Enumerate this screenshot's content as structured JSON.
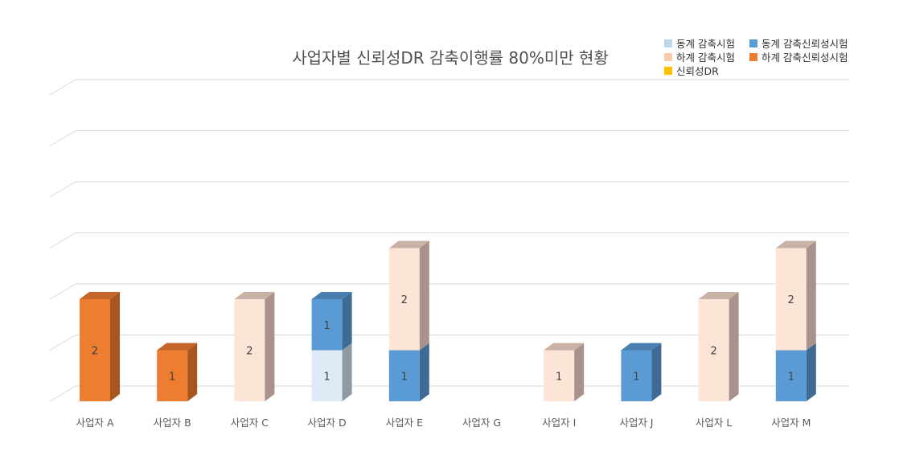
{
  "chart_data": {
    "type": "bar",
    "stacked": true,
    "style": "3d-column",
    "title": "사업자별 신뢰성DR 감축이행률 80%미만 현황",
    "categories": [
      "사업자 A",
      "사업자 B",
      "사업자 C",
      "사업자 D",
      "사업자 E",
      "사업자 G",
      "사업자 I",
      "사업자 J",
      "사업자 L",
      "사업자 M"
    ],
    "ylim": [
      0,
      6
    ],
    "grid": true,
    "legend_position": "top-right",
    "series": [
      {
        "name": "동계 감축시험",
        "color": "#bdd7ee",
        "face": "#deebf7",
        "side": "#8e99a3",
        "top": "#c9d3dc",
        "values": [
          0,
          0,
          0,
          1,
          0,
          0,
          0,
          0,
          0,
          0
        ]
      },
      {
        "name": "동계 감축신뢰성시험",
        "color": "#5b9bd5",
        "face": "#5b9bd5",
        "side": "#3e6b94",
        "top": "#4a7eaf",
        "values": [
          0,
          0,
          0,
          1,
          1,
          0,
          0,
          1,
          0,
          1
        ]
      },
      {
        "name": "하계 감축시험",
        "color": "#f8cbad",
        "face": "#fce4d6",
        "side": "#a8938a",
        "top": "#c9b1a5",
        "values": [
          0,
          0,
          2,
          0,
          2,
          0,
          1,
          0,
          2,
          2
        ]
      },
      {
        "name": "하계 감축신뢰성시험",
        "color": "#ed7d31",
        "face": "#ed7d31",
        "side": "#a8561f",
        "top": "#c5652a",
        "values": [
          2,
          1,
          0,
          0,
          0,
          0,
          0,
          0,
          0,
          0
        ]
      },
      {
        "name": "신뢰성DR",
        "color": "#ffc000",
        "face": "#ffc000",
        "side": "#b38600",
        "top": "#d9a300",
        "values": [
          0,
          0,
          0,
          0,
          0,
          0,
          0,
          0,
          0,
          0
        ]
      }
    ]
  }
}
